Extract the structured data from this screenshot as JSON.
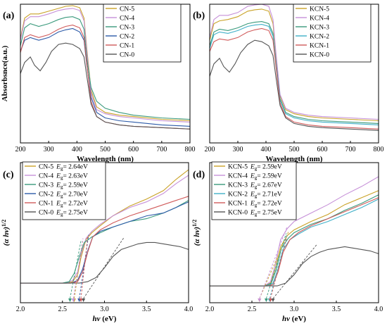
{
  "chart_data": [
    {
      "panel": "(a)",
      "type": "line",
      "xlabel": "Wavelength (nm)",
      "ylabel": "Absorbsnce(a.u.)",
      "xlim": [
        200,
        800
      ],
      "ylim": [
        0,
        1
      ],
      "xticks": [
        "200",
        "300",
        "400",
        "500",
        "600",
        "700",
        "800"
      ],
      "legend_position": "top-right",
      "series": [
        {
          "name": "CN-5",
          "color": "#c9a227",
          "x": [
            200,
            215,
            235,
            265,
            300,
            335,
            360,
            385,
            410,
            425,
            435,
            450,
            470,
            500,
            550,
            600,
            700,
            800
          ],
          "y": [
            0.75,
            0.9,
            0.93,
            0.93,
            0.95,
            0.97,
            0.985,
            0.99,
            0.975,
            0.9,
            0.68,
            0.38,
            0.26,
            0.22,
            0.2,
            0.19,
            0.17,
            0.16
          ]
        },
        {
          "name": "CN-4",
          "color": "#c690d8",
          "x": [
            200,
            215,
            235,
            265,
            300,
            335,
            360,
            385,
            410,
            425,
            435,
            450,
            470,
            500,
            550,
            600,
            700,
            800
          ],
          "y": [
            0.74,
            0.88,
            0.91,
            0.91,
            0.93,
            0.955,
            0.965,
            0.97,
            0.955,
            0.88,
            0.66,
            0.36,
            0.24,
            0.21,
            0.19,
            0.18,
            0.16,
            0.15
          ]
        },
        {
          "name": "CN-3",
          "color": "#3a9a7c",
          "x": [
            200,
            215,
            235,
            265,
            300,
            335,
            360,
            385,
            410,
            425,
            435,
            450,
            470,
            500,
            550,
            600,
            700,
            800
          ],
          "y": [
            0.7,
            0.83,
            0.86,
            0.84,
            0.86,
            0.89,
            0.905,
            0.91,
            0.89,
            0.82,
            0.61,
            0.4,
            0.3,
            0.25,
            0.22,
            0.2,
            0.18,
            0.17
          ]
        },
        {
          "name": "CN-2",
          "color": "#2c5aa8",
          "x": [
            200,
            215,
            235,
            265,
            300,
            335,
            360,
            385,
            410,
            425,
            435,
            450,
            470,
            500,
            550,
            600,
            700,
            800
          ],
          "y": [
            0.66,
            0.74,
            0.76,
            0.74,
            0.76,
            0.8,
            0.815,
            0.825,
            0.8,
            0.74,
            0.56,
            0.33,
            0.22,
            0.18,
            0.16,
            0.15,
            0.13,
            0.12
          ]
        },
        {
          "name": "CN-1",
          "color": "#d05a5a",
          "x": [
            200,
            215,
            235,
            265,
            300,
            335,
            360,
            385,
            410,
            425,
            435,
            450,
            470,
            500,
            550,
            600,
            700,
            800
          ],
          "y": [
            0.65,
            0.76,
            0.78,
            0.76,
            0.78,
            0.82,
            0.84,
            0.85,
            0.83,
            0.76,
            0.57,
            0.3,
            0.19,
            0.15,
            0.13,
            0.12,
            0.11,
            0.1
          ]
        },
        {
          "name": "CN-0",
          "color": "#555555",
          "x": [
            200,
            215,
            235,
            250,
            270,
            290,
            310,
            335,
            360,
            385,
            410,
            425,
            435,
            450,
            470,
            500,
            550,
            600,
            700,
            800
          ],
          "y": [
            0.5,
            0.58,
            0.62,
            0.56,
            0.52,
            0.58,
            0.66,
            0.71,
            0.72,
            0.71,
            0.68,
            0.62,
            0.48,
            0.28,
            0.19,
            0.15,
            0.13,
            0.12,
            0.11,
            0.1
          ]
        }
      ]
    },
    {
      "panel": "(b)",
      "type": "line",
      "xlabel": "Wavelength (nm)",
      "ylabel": "",
      "xlim": [
        200,
        800
      ],
      "ylim": [
        0,
        1
      ],
      "xticks": [
        "200",
        "300",
        "400",
        "500",
        "600",
        "700",
        "800"
      ],
      "legend_position": "top-right",
      "series": [
        {
          "name": "KCN-5",
          "color": "#c9a227",
          "x": [
            200,
            215,
            235,
            265,
            300,
            335,
            360,
            385,
            410,
            425,
            435,
            450,
            470,
            500,
            550,
            600,
            700,
            800
          ],
          "y": [
            0.74,
            0.86,
            0.88,
            0.89,
            0.91,
            0.95,
            0.96,
            0.965,
            0.95,
            0.86,
            0.64,
            0.34,
            0.24,
            0.21,
            0.19,
            0.18,
            0.17,
            0.16
          ]
        },
        {
          "name": "KCN-4",
          "color": "#c690d8",
          "x": [
            200,
            215,
            235,
            265,
            300,
            335,
            360,
            385,
            410,
            425,
            435,
            450,
            470,
            500,
            550,
            600,
            700,
            800
          ],
          "y": [
            0.76,
            0.89,
            0.92,
            0.92,
            0.94,
            0.985,
            0.995,
            1.0,
            0.985,
            0.89,
            0.66,
            0.35,
            0.25,
            0.22,
            0.2,
            0.19,
            0.18,
            0.17
          ]
        },
        {
          "name": "KCN-3",
          "color": "#3a9a7c",
          "x": [
            200,
            215,
            235,
            265,
            300,
            335,
            360,
            385,
            410,
            425,
            435,
            450,
            470,
            500,
            550,
            600,
            700,
            800
          ],
          "y": [
            0.7,
            0.8,
            0.82,
            0.81,
            0.83,
            0.86,
            0.87,
            0.875,
            0.86,
            0.79,
            0.59,
            0.32,
            0.22,
            0.19,
            0.17,
            0.16,
            0.15,
            0.14
          ]
        },
        {
          "name": "KCN-2",
          "color": "#40b0c8",
          "x": [
            200,
            215,
            235,
            265,
            300,
            335,
            360,
            385,
            410,
            425,
            435,
            450,
            470,
            500,
            550,
            600,
            700,
            800
          ],
          "y": [
            0.68,
            0.78,
            0.8,
            0.79,
            0.81,
            0.84,
            0.85,
            0.855,
            0.84,
            0.77,
            0.58,
            0.31,
            0.21,
            0.18,
            0.16,
            0.15,
            0.14,
            0.13
          ]
        },
        {
          "name": "KCN-1",
          "color": "#d05a5a",
          "x": [
            200,
            215,
            235,
            265,
            300,
            335,
            360,
            385,
            410,
            425,
            435,
            450,
            470,
            500,
            550,
            600,
            700,
            800
          ],
          "y": [
            0.66,
            0.73,
            0.75,
            0.74,
            0.76,
            0.8,
            0.815,
            0.825,
            0.81,
            0.74,
            0.56,
            0.29,
            0.19,
            0.15,
            0.13,
            0.12,
            0.11,
            0.1
          ]
        },
        {
          "name": "KCN-0",
          "color": "#555555",
          "x": [
            200,
            215,
            235,
            250,
            270,
            290,
            310,
            335,
            360,
            385,
            410,
            425,
            435,
            450,
            470,
            500,
            550,
            600,
            700,
            800
          ],
          "y": [
            0.48,
            0.57,
            0.61,
            0.55,
            0.51,
            0.57,
            0.65,
            0.71,
            0.74,
            0.73,
            0.7,
            0.63,
            0.48,
            0.27,
            0.18,
            0.14,
            0.12,
            0.11,
            0.1,
            0.09
          ]
        }
      ]
    },
    {
      "panel": "(c)",
      "type": "line",
      "xlabel": "hv (eV)",
      "ylabel": "(α hv)1/2",
      "xlim": [
        2.0,
        4.0
      ],
      "ylim": [
        0,
        1
      ],
      "xticks": [
        "2.0",
        "2.5",
        "3.0",
        "3.5",
        "4.0"
      ],
      "legend_position": "top-left",
      "series": [
        {
          "name": "CN-5",
          "eg": "2.64eV",
          "color": "#c9a227",
          "x": [
            2.0,
            2.55,
            2.62,
            2.68,
            2.72,
            2.78,
            2.85,
            2.95,
            3.1,
            3.3,
            3.5,
            3.7,
            3.85,
            4.0
          ],
          "y": [
            0.14,
            0.14,
            0.15,
            0.2,
            0.32,
            0.45,
            0.5,
            0.55,
            0.62,
            0.69,
            0.74,
            0.8,
            0.88,
            0.95
          ]
        },
        {
          "name": "CN-4",
          "eg": "2.63eV",
          "color": "#c690d8",
          "x": [
            2.0,
            2.55,
            2.62,
            2.68,
            2.72,
            2.78,
            2.85,
            2.95,
            3.1,
            3.3,
            3.5,
            3.7,
            3.85,
            4.0
          ],
          "y": [
            0.14,
            0.14,
            0.16,
            0.22,
            0.34,
            0.46,
            0.51,
            0.56,
            0.62,
            0.68,
            0.72,
            0.78,
            0.85,
            0.91
          ]
        },
        {
          "name": "CN-3",
          "eg": "2.59eV",
          "color": "#3a9a7c",
          "x": [
            2.0,
            2.5,
            2.58,
            2.64,
            2.7,
            2.76,
            2.85,
            2.95,
            3.1,
            3.3,
            3.5,
            3.7,
            3.85,
            4.0
          ],
          "y": [
            0.14,
            0.14,
            0.15,
            0.21,
            0.33,
            0.43,
            0.47,
            0.5,
            0.54,
            0.58,
            0.6,
            0.64,
            0.68,
            0.73
          ]
        },
        {
          "name": "CN-2",
          "eg": "2.70eV",
          "color": "#2c5aa8",
          "x": [
            2.0,
            2.6,
            2.68,
            2.74,
            2.8,
            2.86,
            2.95,
            3.1,
            3.3,
            3.5,
            3.7,
            3.85,
            4.0
          ],
          "y": [
            0.14,
            0.14,
            0.16,
            0.24,
            0.37,
            0.47,
            0.51,
            0.54,
            0.58,
            0.62,
            0.64,
            0.68,
            0.72
          ]
        },
        {
          "name": "CN-1",
          "eg": "2.72eV",
          "color": "#d05a5a",
          "x": [
            2.0,
            2.6,
            2.68,
            2.74,
            2.8,
            2.86,
            2.95,
            3.1,
            3.3,
            3.5,
            3.7,
            3.85,
            4.0
          ],
          "y": [
            0.14,
            0.14,
            0.15,
            0.22,
            0.36,
            0.47,
            0.52,
            0.57,
            0.62,
            0.66,
            0.7,
            0.73,
            0.76
          ]
        },
        {
          "name": "CN-0",
          "eg": "2.75eV",
          "color": "#555555",
          "x": [
            2.0,
            2.7,
            2.8,
            2.9,
            3.0,
            3.1,
            3.2,
            3.3,
            3.4,
            3.5,
            3.6,
            3.7,
            3.8,
            3.9,
            4.0
          ],
          "y": [
            0.14,
            0.14,
            0.15,
            0.18,
            0.25,
            0.33,
            0.38,
            0.4,
            0.42,
            0.43,
            0.43,
            0.42,
            0.41,
            0.4,
            0.38
          ]
        }
      ]
    },
    {
      "panel": "(d)",
      "type": "line",
      "xlabel": "hv (eV)",
      "ylabel": "(α hv)1/2",
      "xlim": [
        2.0,
        4.0
      ],
      "ylim": [
        0,
        1
      ],
      "xticks": [
        "2.0",
        "2.5",
        "3.0",
        "3.5",
        "4.0"
      ],
      "legend_position": "top-left",
      "series": [
        {
          "name": "KCN-5",
          "eg": "2.59eV",
          "color": "#c9a227",
          "x": [
            2.0,
            2.65,
            2.72,
            2.78,
            2.84,
            2.92,
            3.0,
            3.2,
            3.4,
            3.6,
            3.8,
            4.0
          ],
          "y": [
            0.12,
            0.12,
            0.14,
            0.25,
            0.4,
            0.48,
            0.52,
            0.58,
            0.63,
            0.7,
            0.75,
            0.8
          ]
        },
        {
          "name": "KCN-4",
          "eg": "2.59eV",
          "color": "#c690d8",
          "x": [
            2.0,
            2.65,
            2.72,
            2.78,
            2.84,
            2.92,
            3.0,
            3.2,
            3.4,
            3.6,
            3.8,
            4.0
          ],
          "y": [
            0.12,
            0.12,
            0.15,
            0.28,
            0.45,
            0.53,
            0.58,
            0.64,
            0.7,
            0.77,
            0.83,
            0.9
          ]
        },
        {
          "name": "KCN-3",
          "eg": "2.67eV",
          "color": "#3a9a7c",
          "x": [
            2.0,
            2.66,
            2.73,
            2.79,
            2.85,
            2.93,
            3.0,
            3.2,
            3.4,
            3.6,
            3.8,
            4.0
          ],
          "y": [
            0.12,
            0.12,
            0.14,
            0.24,
            0.39,
            0.46,
            0.5,
            0.56,
            0.6,
            0.66,
            0.71,
            0.77
          ]
        },
        {
          "name": "KCN-2",
          "eg": "2.71eV",
          "color": "#40b0c8",
          "x": [
            2.0,
            2.68,
            2.75,
            2.81,
            2.87,
            2.95,
            3.05,
            3.2,
            3.4,
            3.6,
            3.8,
            4.0
          ],
          "y": [
            0.12,
            0.12,
            0.14,
            0.24,
            0.38,
            0.45,
            0.49,
            0.54,
            0.58,
            0.63,
            0.68,
            0.74
          ]
        },
        {
          "name": "KCN-1",
          "eg": "2.72eV",
          "color": "#d05a5a",
          "x": [
            2.0,
            2.68,
            2.75,
            2.81,
            2.87,
            2.95,
            3.05,
            3.2,
            3.4,
            3.6,
            3.8,
            4.0
          ],
          "y": [
            0.12,
            0.12,
            0.13,
            0.22,
            0.36,
            0.45,
            0.5,
            0.55,
            0.6,
            0.65,
            0.7,
            0.75
          ]
        },
        {
          "name": "KCN-0",
          "eg": "2.75eV",
          "color": "#555555",
          "x": [
            2.0,
            2.8,
            2.9,
            3.0,
            3.1,
            3.2,
            3.3,
            3.4,
            3.5,
            3.6,
            3.7,
            3.8,
            3.9,
            4.0
          ],
          "y": [
            0.12,
            0.12,
            0.14,
            0.2,
            0.28,
            0.33,
            0.36,
            0.38,
            0.39,
            0.4,
            0.39,
            0.38,
            0.37,
            0.35
          ]
        }
      ]
    }
  ]
}
